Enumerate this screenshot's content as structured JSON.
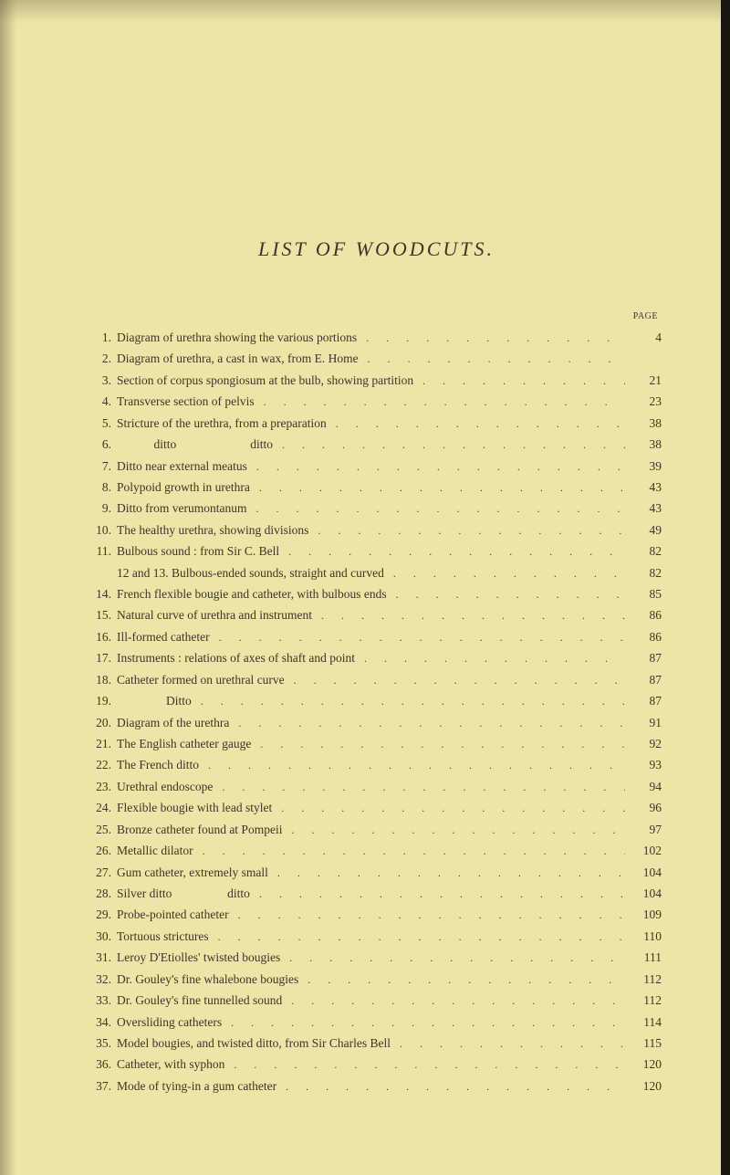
{
  "title": "LIST OF WOODCUTS.",
  "page_label": "PAGE",
  "background_color": "#ede4a8",
  "text_color": "#3a3628",
  "font_family": "Times New Roman",
  "entries": [
    {
      "num": "1.",
      "desc": "Diagram of urethra showing the various portions",
      "page": "4"
    },
    {
      "num": "2.",
      "desc": "Diagram of urethra, a cast in wax, from E. Home",
      "page": ""
    },
    {
      "num": "3.",
      "desc": "Section of corpus spongiosum at the bulb, showing partition",
      "page": "21"
    },
    {
      "num": "4.",
      "desc": "Transverse section of pelvis",
      "page": "23"
    },
    {
      "num": "5.",
      "desc": "Stricture of the urethra, from a preparation",
      "page": "38"
    },
    {
      "num": "6.",
      "desc": "            ditto                        ditto",
      "page": "38"
    },
    {
      "num": "7.",
      "desc": "Ditto near external meatus",
      "page": "39"
    },
    {
      "num": "8.",
      "desc": "Polypoid growth in urethra",
      "page": "43"
    },
    {
      "num": "9.",
      "desc": "Ditto from verumontanum",
      "page": "43"
    },
    {
      "num": "10.",
      "desc": "The healthy urethra, showing divisions",
      "page": "49"
    },
    {
      "num": "11.",
      "desc": "Bulbous sound : from Sir C. Bell",
      "page": "82"
    },
    {
      "num": "",
      "desc": "12 and 13. Bulbous-ended sounds, straight and curved",
      "page": "82"
    },
    {
      "num": "14.",
      "desc": "French flexible bougie and catheter, with bulbous ends",
      "page": "85"
    },
    {
      "num": "15.",
      "desc": "Natural curve of urethra and instrument",
      "page": "86"
    },
    {
      "num": "16.",
      "desc": "Ill-formed catheter",
      "page": "86"
    },
    {
      "num": "17.",
      "desc": "Instruments : relations of axes of shaft and point",
      "page": "87"
    },
    {
      "num": "18.",
      "desc": "Catheter formed on urethral curve",
      "page": "87"
    },
    {
      "num": "19.",
      "desc": "                Ditto",
      "page": "87"
    },
    {
      "num": "20.",
      "desc": "Diagram of the urethra",
      "page": "91"
    },
    {
      "num": "21.",
      "desc": "The English catheter gauge",
      "page": "92"
    },
    {
      "num": "22.",
      "desc": "The French ditto",
      "page": "93"
    },
    {
      "num": "23.",
      "desc": "Urethral endoscope",
      "page": "94"
    },
    {
      "num": "24.",
      "desc": "Flexible bougie with lead stylet",
      "page": "96"
    },
    {
      "num": "25.",
      "desc": "Bronze catheter found at Pompeii",
      "page": "97"
    },
    {
      "num": "26.",
      "desc": "Metallic dilator",
      "page": "102"
    },
    {
      "num": "27.",
      "desc": "Gum catheter, extremely small",
      "page": "104"
    },
    {
      "num": "28.",
      "desc": "Silver ditto                  ditto",
      "page": "104"
    },
    {
      "num": "29.",
      "desc": "Probe-pointed catheter",
      "page": "109"
    },
    {
      "num": "30.",
      "desc": "Tortuous strictures",
      "page": "110"
    },
    {
      "num": "31.",
      "desc": "Leroy D'Etiolles' twisted bougies",
      "page": "111"
    },
    {
      "num": "32.",
      "desc": "Dr. Gouley's fine whalebone bougies",
      "page": "112"
    },
    {
      "num": "33.",
      "desc": "Dr. Gouley's fine tunnelled sound",
      "page": "112"
    },
    {
      "num": "34.",
      "desc": "Oversliding catheters",
      "page": "114"
    },
    {
      "num": "35.",
      "desc": "Model bougies, and twisted ditto, from Sir Charles Bell",
      "page": "115"
    },
    {
      "num": "36.",
      "desc": "Catheter, with syphon",
      "page": "120"
    },
    {
      "num": "37.",
      "desc": "Mode of tying-in a gum catheter",
      "page": "120"
    }
  ]
}
